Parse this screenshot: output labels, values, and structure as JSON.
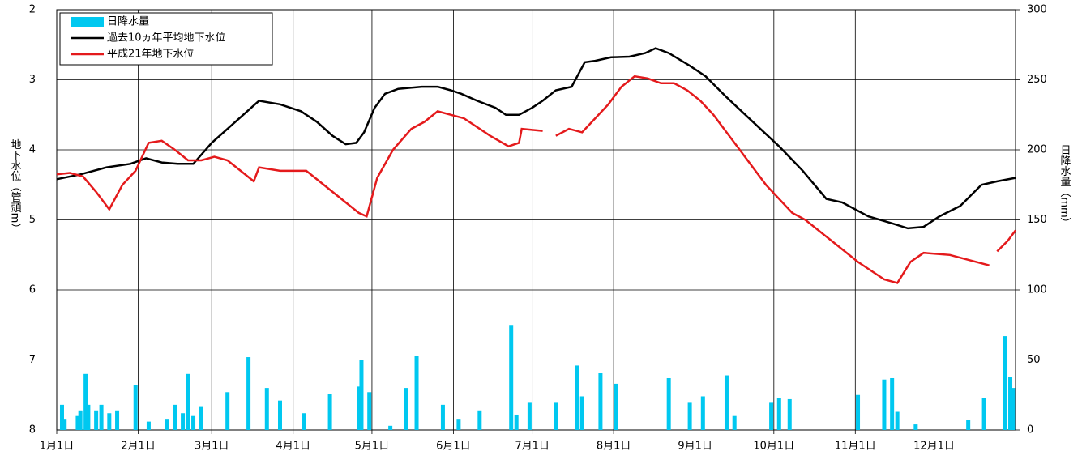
{
  "chart_data": {
    "type": "line",
    "xlim": [
      0,
      365
    ],
    "xticks": [
      {
        "value": 0,
        "label": "1月1日"
      },
      {
        "value": 31,
        "label": "2月1日"
      },
      {
        "value": 59,
        "label": "3月1日"
      },
      {
        "value": 90,
        "label": "4月1日"
      },
      {
        "value": 120,
        "label": "5月1日"
      },
      {
        "value": 151,
        "label": "6月1日"
      },
      {
        "value": 181,
        "label": "7月1日"
      },
      {
        "value": 212,
        "label": "8月1日"
      },
      {
        "value": 243,
        "label": "9月1日"
      },
      {
        "value": 273,
        "label": "10月1日"
      },
      {
        "value": 304,
        "label": "11月1日"
      },
      {
        "value": 334,
        "label": "12月1日"
      }
    ],
    "ylim": [
      8,
      2
    ],
    "yticks": [
      2,
      3,
      4,
      5,
      6,
      7,
      8
    ],
    "y2lim": [
      0,
      300
    ],
    "y2ticks": [
      0,
      50,
      100,
      150,
      200,
      250,
      300
    ],
    "y_label": "地下水位（管頭m）",
    "y2_label": "日降水量（mm）",
    "grid": true,
    "legend": "upper left",
    "series": [
      {
        "name": "日降水量",
        "type": "bar",
        "axis": "y2",
        "color": "#00c8f0",
        "x": [
          2,
          3,
          8,
          9,
          11,
          12,
          15,
          17,
          20,
          23,
          30,
          35,
          42,
          45,
          48,
          50,
          52,
          55,
          65,
          73,
          80,
          85,
          94,
          104,
          115,
          116,
          119,
          127,
          133,
          137,
          147,
          153,
          161,
          173,
          175,
          180,
          190,
          198,
          200,
          207,
          213,
          233,
          241,
          246,
          255,
          258,
          272,
          275,
          279,
          305,
          315,
          318,
          320,
          327,
          347,
          353,
          361,
          363,
          364
        ],
        "values": [
          18,
          8,
          10,
          14,
          40,
          18,
          14,
          18,
          12,
          14,
          32,
          6,
          8,
          18,
          12,
          40,
          10,
          17,
          27,
          52,
          30,
          21,
          12,
          26,
          31,
          50,
          27,
          3,
          30,
          53,
          18,
          8,
          14,
          75,
          11,
          20,
          20,
          46,
          24,
          41,
          33,
          37,
          20,
          24,
          39,
          10,
          20,
          23,
          22,
          25,
          36,
          37,
          13,
          4,
          7,
          23,
          67,
          38,
          30
        ]
      },
      {
        "name": "過去10ヵ年平均地下水位",
        "color": "#000000",
        "x": [
          0,
          9,
          19,
          28,
          34,
          40,
          46,
          52,
          59,
          65,
          71,
          77,
          85,
          93,
          99,
          105,
          110,
          114,
          117,
          121,
          125,
          130,
          139,
          145,
          150,
          154,
          160,
          167,
          171,
          176,
          181,
          185,
          190,
          196,
          201,
          205,
          211,
          218,
          224,
          228,
          233,
          241,
          247,
          255,
          265,
          275,
          284,
          293,
          299,
          309,
          318,
          324,
          330,
          336,
          344,
          352,
          358,
          365
        ],
        "values": [
          4.42,
          4.35,
          4.25,
          4.2,
          4.12,
          4.18,
          4.2,
          4.2,
          3.9,
          3.7,
          3.5,
          3.3,
          3.35,
          3.45,
          3.6,
          3.8,
          3.92,
          3.9,
          3.75,
          3.4,
          3.2,
          3.13,
          3.1,
          3.1,
          3.15,
          3.2,
          3.3,
          3.4,
          3.5,
          3.5,
          3.4,
          3.3,
          3.15,
          3.1,
          2.75,
          2.73,
          2.68,
          2.67,
          2.62,
          2.55,
          2.62,
          2.8,
          2.95,
          3.25,
          3.6,
          3.95,
          4.3,
          4.7,
          4.75,
          4.95,
          5.05,
          5.12,
          5.1,
          4.95,
          4.8,
          4.5,
          4.45,
          4.4
        ]
      },
      {
        "name": "平成21年地下水位",
        "color": "#e41a1c",
        "x": [
          0,
          5,
          10,
          15,
          20,
          25,
          30,
          35,
          40,
          45,
          50,
          55,
          60,
          65,
          70,
          75,
          77,
          85,
          95,
          105,
          115,
          118,
          122,
          128,
          135,
          140,
          145,
          155,
          165,
          172,
          176,
          177,
          185,
          189,
          190,
          195,
          200,
          205,
          210,
          215,
          220,
          225,
          230,
          235,
          240,
          245,
          250,
          260,
          270,
          280,
          285,
          295,
          305,
          315,
          320,
          325,
          330,
          340,
          350,
          355,
          357,
          358,
          362,
          365
        ],
        "values": [
          4.35,
          4.33,
          4.38,
          4.6,
          4.85,
          4.5,
          4.3,
          3.9,
          3.87,
          4.0,
          4.15,
          4.15,
          4.1,
          4.15,
          4.3,
          4.45,
          4.25,
          4.3,
          4.3,
          4.6,
          4.9,
          4.95,
          4.4,
          4.0,
          3.7,
          3.6,
          3.45,
          3.55,
          3.8,
          3.95,
          3.9,
          3.7,
          3.73,
          null,
          3.8,
          3.7,
          3.75,
          3.55,
          3.35,
          3.1,
          2.95,
          2.98,
          3.05,
          3.05,
          3.15,
          3.3,
          3.5,
          4.0,
          4.5,
          4.9,
          5.0,
          5.3,
          5.6,
          5.85,
          5.9,
          5.6,
          5.47,
          5.5,
          5.6,
          5.65,
          null,
          5.45,
          5.3,
          5.15
        ]
      }
    ]
  }
}
